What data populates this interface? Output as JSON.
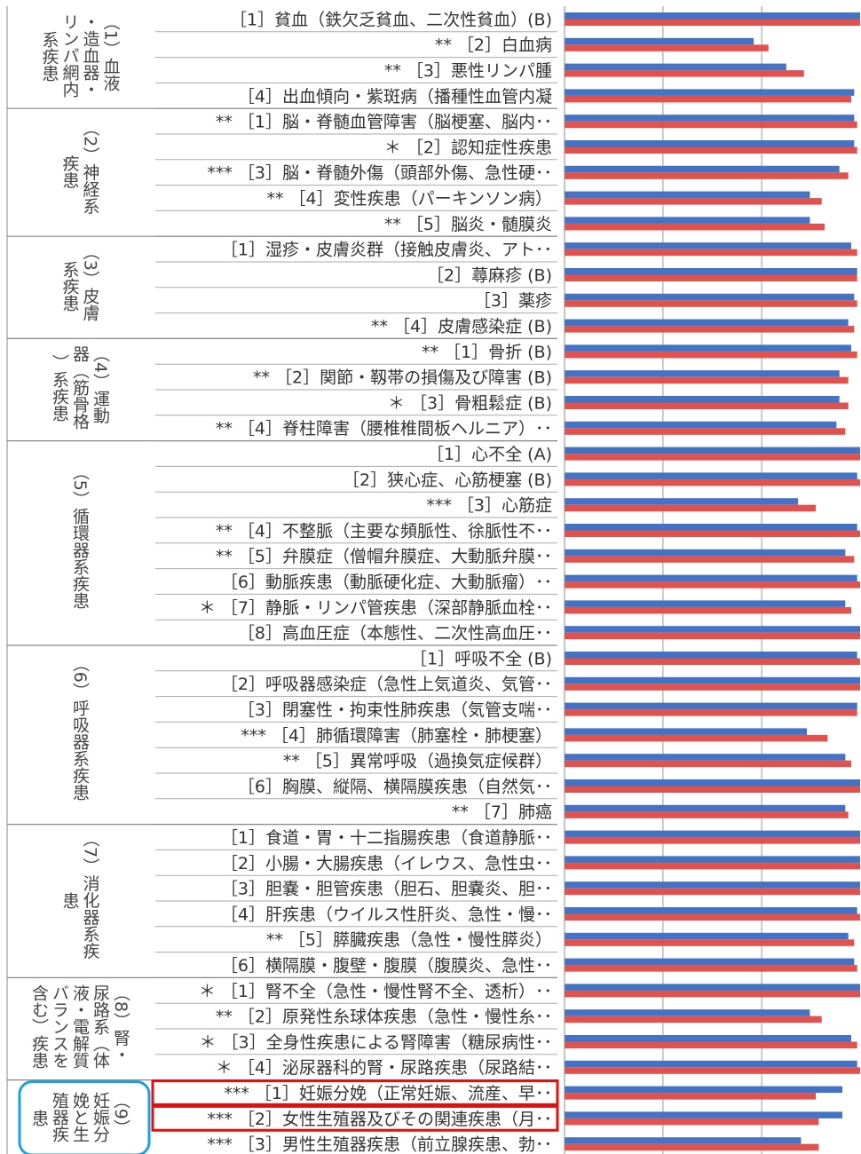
{
  "chart_data": {
    "type": "bar",
    "orientation": "horizontal",
    "xlim": [
      0,
      100
    ],
    "gridlines": [
      0,
      33.3,
      66.7
    ],
    "grid": true,
    "series": [
      {
        "color": "#4472C4"
      },
      {
        "color": "#E0524E"
      }
    ],
    "groups": [
      {
        "label": "（1）血液・造血器・リンパ網内系疾患",
        "rows": [
          0,
          3
        ]
      },
      {
        "label": "（2）神経系疾患",
        "rows": [
          4,
          8
        ]
      },
      {
        "label": "（3）皮膚系疾患",
        "rows": [
          9,
          12
        ]
      },
      {
        "label": "（4）運動器（筋骨格）系疾患",
        "rows": [
          13,
          16
        ]
      },
      {
        "label": "（5）循環器系疾患",
        "rows": [
          17,
          24
        ]
      },
      {
        "label": "（6）呼吸器系疾患",
        "rows": [
          25,
          31
        ]
      },
      {
        "label": "（7）消化器系疾患",
        "rows": [
          32,
          37
        ]
      },
      {
        "label": "（8）腎・尿路系（体液・電解質バランスを含む）疾患",
        "rows": [
          38,
          41
        ]
      },
      {
        "label": "（9）妊娠分娩と生殖器疾患",
        "rows": [
          42,
          44
        ]
      }
    ],
    "categories": [
      "［1］貧血（鉄欠乏貧血、二次性貧血）(B)",
      "** ［2］白血病",
      "** ［3］悪性リンパ腫",
      "［4］出血傾向・紫斑病（播種性血管内凝",
      "** ［1］脳・脊髄血管障害（脳梗塞、脳内･･",
      "＊ ［2］認知症性疾患",
      "*** ［3］脳・脊髄外傷（頭部外傷、急性硬･･",
      "** ［4］変性疾患（パーキンソン病）",
      "** ［5］脳炎・髄膜炎",
      "［1］湿疹・皮膚炎群（接触皮膚炎、アト･･",
      "［2］蕁麻疹 (B)",
      "［3］薬疹",
      "** ［4］皮膚感染症 (B)",
      "** ［1］骨折 (B)",
      "** ［2］関節・靱帯の損傷及び障害 (B)",
      "＊ ［3］骨粗鬆症 (B)",
      "** ［4］脊柱障害（腰椎椎間板ヘルニア）･･",
      "［1］心不全 (A)",
      "［2］狭心症、心筋梗塞 (B)",
      "*** ［3］心筋症",
      "** ［4］不整脈（主要な頻脈性、徐脈性不･･",
      "** ［5］弁膜症（僧帽弁膜症、大動脈弁膜･･",
      "［6］動脈疾患（動脈硬化症、大動脈瘤）･･",
      "＊ ［7］静脈・リンパ管疾患（深部静脈血栓･･",
      "［8］高血圧症（本態性、二次性高血圧･･",
      "［1］呼吸不全 (B)",
      "［2］呼吸器感染症（急性上気道炎、気管･･",
      "［3］閉塞性・拘束性肺疾患（気管支喘･･",
      "*** ［4］肺循環障害（肺塞栓・肺梗塞）",
      "** ［5］異常呼吸（過換気症候群）",
      "［6］胸膜、縦隔、横隔膜疾患（自然気･･",
      "** ［7］肺癌",
      "［1］食道・胃・十二指腸疾患（食道静脈･･",
      "［2］小腸・大腸疾患（イレウス、急性虫･･",
      "［3］胆嚢・胆管疾患（胆石、胆嚢炎、胆･･",
      "［4］肝疾患（ウイルス性肝炎、急性・慢･･",
      "** ［5］膵臓疾患（急性・慢性膵炎）",
      "［6］横隔膜・腹壁・腹膜（腹膜炎、急性･･",
      "＊ ［1］腎不全（急性・慢性腎不全、透析）･･",
      "** ［2］原発性糸球体疾患（急性・慢性糸･･",
      "＊ ［3］全身性疾患による腎障害（糖尿病性･･",
      "＊ ［4］泌尿器科的腎・尿路疾患（尿路結･･",
      "*** ［1］妊娠分娩（正常妊娠、流産、早･･",
      "*** ［2］女性生殖器及びその関連疾患（月･･",
      "*** ［3］男性生殖器疾患（前立腺疾患、勃･･"
    ],
    "values_blue": [
      100,
      64,
      75,
      98,
      98,
      98,
      93,
      83,
      83,
      97,
      99,
      98,
      96,
      97,
      93,
      93,
      92,
      100,
      99,
      79,
      99,
      95,
      99,
      95,
      100,
      99,
      100,
      99,
      82,
      95,
      100,
      95,
      100,
      100,
      100,
      99,
      96,
      98,
      100,
      83,
      97,
      99,
      94,
      94,
      80
    ],
    "values_red": [
      100,
      69,
      81,
      97,
      99,
      99,
      96,
      87,
      88,
      99,
      99,
      99,
      98,
      99,
      96,
      96,
      95,
      100,
      100,
      85,
      100,
      98,
      100,
      97,
      100,
      100,
      100,
      99,
      89,
      97,
      100,
      96,
      100,
      100,
      100,
      100,
      98,
      99,
      100,
      87,
      99,
      100,
      85,
      86,
      86
    ],
    "highlight_rows": [
      42,
      43
    ]
  }
}
